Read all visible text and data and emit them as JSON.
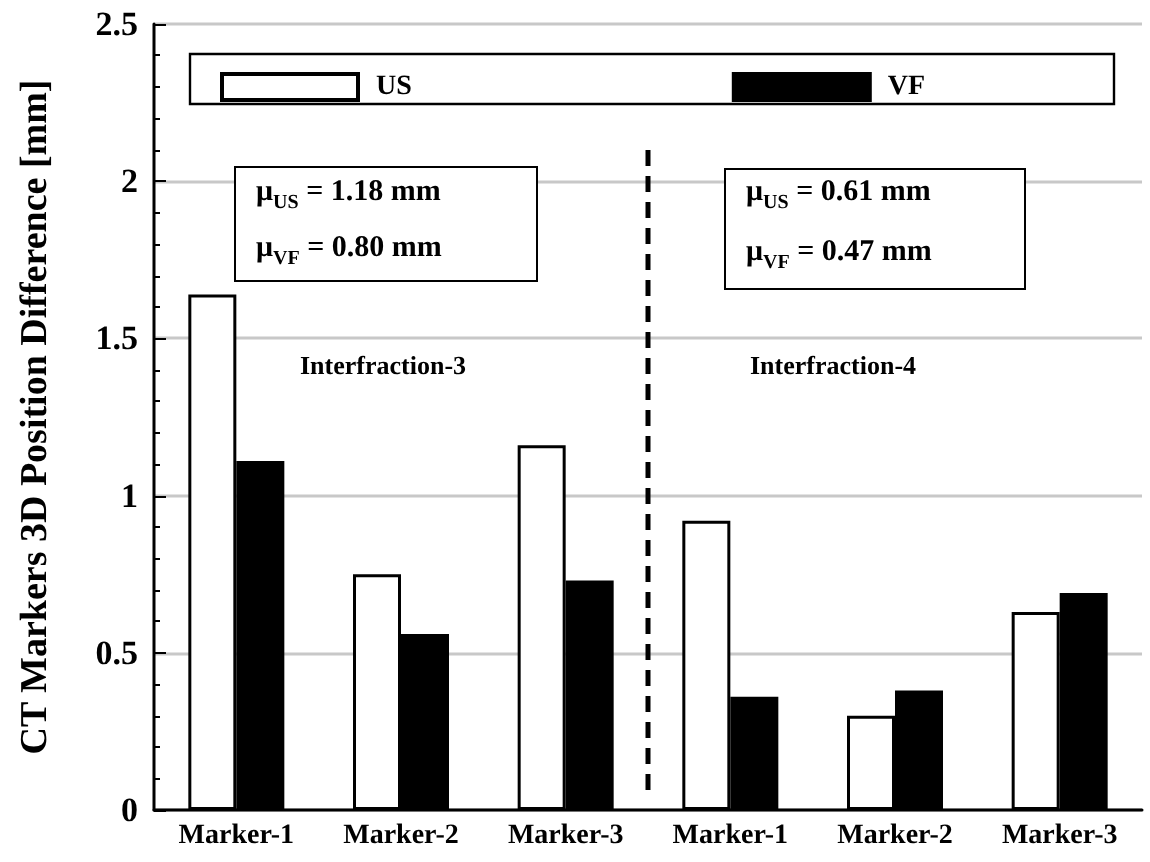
{
  "chart_data": {
    "type": "bar",
    "ylabel": "CT Markers 3D Position Difference [mm]",
    "categories": [
      "Marker-1",
      "Marker-2",
      "Marker-3",
      "Marker-1",
      "Marker-2",
      "Marker-3"
    ],
    "series": [
      {
        "name": "US",
        "color": "#ffffff",
        "values": [
          1.64,
          0.75,
          1.16,
          0.92,
          0.3,
          0.63
        ]
      },
      {
        "name": "VF",
        "color": "#000000",
        "values": [
          1.11,
          0.56,
          0.73,
          0.36,
          0.38,
          0.69
        ]
      }
    ],
    "ylim": [
      0,
      2.5
    ],
    "yticks": [
      0,
      0.5,
      1,
      1.5,
      2,
      2.5
    ],
    "grid": "y",
    "legend": "top",
    "annotations": [
      "Interfraction-3",
      "Interfraction-4",
      "μ$_{US}$ = 1.18 mm",
      "μ$_{VF}$ = 0.80 mm",
      "μ$_{US}$ = 0.61 mm",
      "μ$_{VF}$ = 0.47 mm"
    ]
  }
}
